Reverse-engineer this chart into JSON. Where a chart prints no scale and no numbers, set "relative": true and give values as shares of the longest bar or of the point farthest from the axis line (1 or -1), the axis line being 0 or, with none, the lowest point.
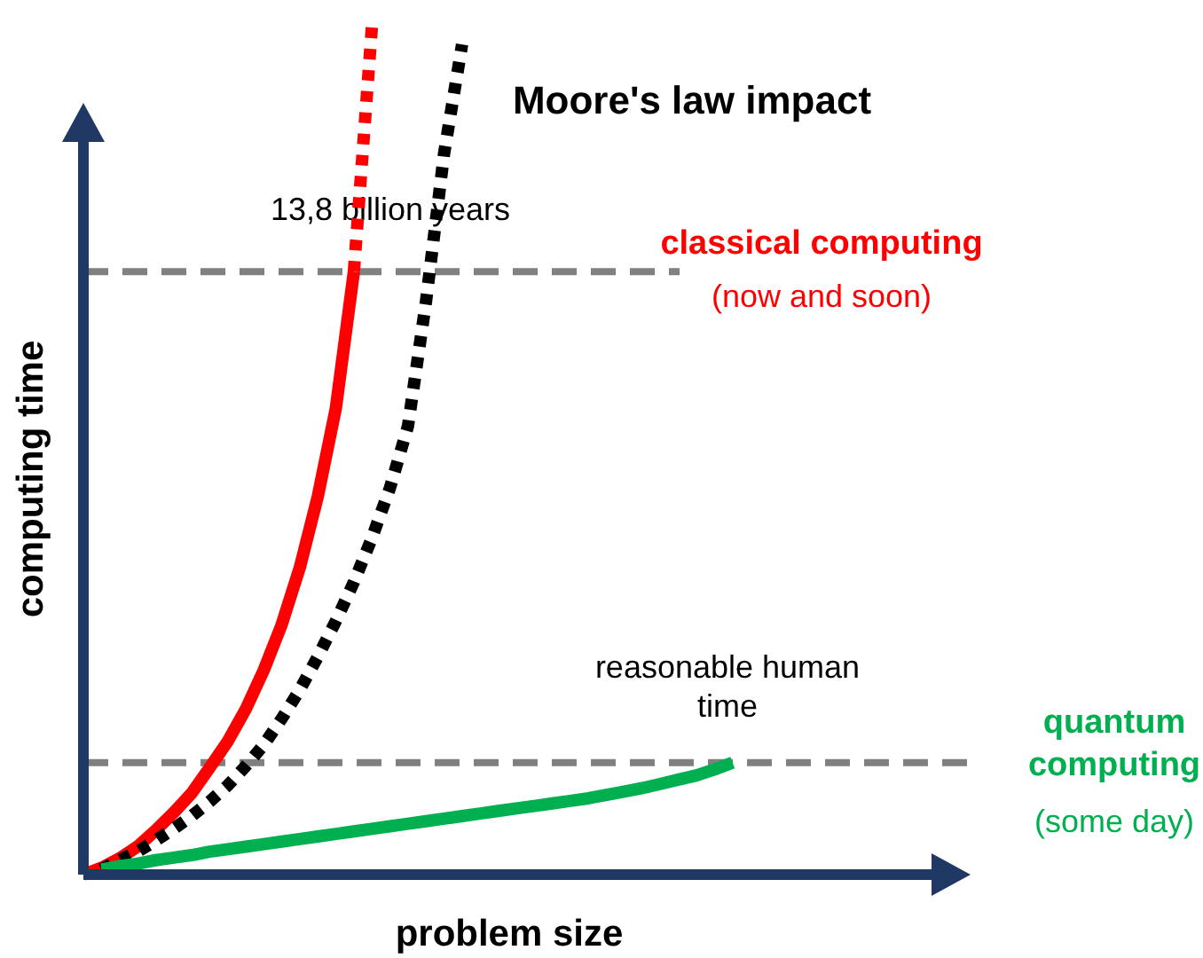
{
  "chart_data": {
    "type": "line",
    "relative": true,
    "xlabel": "problem size",
    "ylabel": "computing time",
    "categories": [
      null,
      null,
      null,
      null,
      null,
      null,
      null,
      null,
      null,
      null,
      null,
      null,
      null,
      null,
      null,
      null,
      null,
      null,
      null,
      null,
      null,
      null,
      null,
      null,
      null,
      null,
      null,
      null,
      null,
      null,
      null,
      null,
      null,
      null,
      null,
      null,
      null,
      null,
      null,
      null,
      null,
      null,
      null,
      null,
      null,
      null,
      null,
      null,
      null,
      null
    ],
    "series": [
      {
        "name": "classical computing",
        "color": "#ff0000",
        "line_style": "solid",
        "values": [
          0,
          0.008,
          0.019,
          0.033,
          0.052,
          0.073,
          0.096,
          0.126,
          0.157,
          0.195,
          0.241,
          0.295,
          0.362,
          0.446,
          0.55,
          0.711,
          null,
          null,
          null,
          null,
          null,
          null,
          null,
          null,
          null,
          null,
          null,
          null,
          null,
          null,
          null,
          null,
          null,
          null,
          null,
          null,
          null,
          null,
          null,
          null,
          null,
          null,
          null,
          null,
          null,
          null,
          null,
          null,
          null,
          null
        ]
      },
      {
        "color": "#ff0000",
        "line_style": "dotted",
        "values": [
          null,
          null,
          null,
          null,
          null,
          null,
          null,
          null,
          null,
          null,
          null,
          null,
          null,
          null,
          null,
          0.711,
          1,
          null,
          null,
          null,
          null,
          null,
          null,
          null,
          null,
          null,
          null,
          null,
          null,
          null,
          null,
          null,
          null,
          null,
          null,
          null,
          null,
          null,
          null,
          null,
          null,
          null,
          null,
          null,
          null,
          null,
          null,
          null,
          null,
          null
        ]
      },
      {
        "name": "Moore's law impact",
        "color": "#000000",
        "line_style": "dotted",
        "values": [
          null,
          0.006,
          0.017,
          0.027,
          0.04,
          0.054,
          0.069,
          0.086,
          0.105,
          0.128,
          0.153,
          0.184,
          0.218,
          0.257,
          0.299,
          0.345,
          0.397,
          0.456,
          0.529,
          0.676,
          0.85,
          0.979,
          null,
          null,
          null,
          null,
          null,
          null,
          null,
          null,
          null,
          null,
          null,
          null,
          null,
          null,
          null,
          null,
          null,
          null,
          null,
          null,
          null,
          null,
          null,
          null,
          null,
          null,
          null,
          null
        ]
      },
      {
        "name": "quantum computing",
        "color": "#00b050",
        "line_style": "solid",
        "values": [
          null,
          0.006,
          0.01,
          0.013,
          0.017,
          0.02,
          0.023,
          0.027,
          0.03,
          0.033,
          0.036,
          0.039,
          0.042,
          0.045,
          0.048,
          0.051,
          0.054,
          0.057,
          0.06,
          0.063,
          0.066,
          0.069,
          0.072,
          0.075,
          0.078,
          0.081,
          0.084,
          0.087,
          0.09,
          0.094,
          0.098,
          0.102,
          0.107,
          0.112,
          0.117,
          0.124,
          0.132,
          null,
          null,
          null,
          null,
          null,
          null,
          null,
          null,
          null,
          null,
          null,
          null,
          null
        ]
      }
    ],
    "ref_lines": [
      {
        "axis": "y",
        "value": 0.711,
        "label": "13,8 billion years",
        "color": "#808080",
        "line_style": "dashed"
      },
      {
        "axis": "y",
        "value": 0.132,
        "label": "reasonable human time",
        "color": "#808080",
        "line_style": "dashed"
      }
    ],
    "annotations": [
      "(now and soon)",
      "(some day)"
    ]
  }
}
